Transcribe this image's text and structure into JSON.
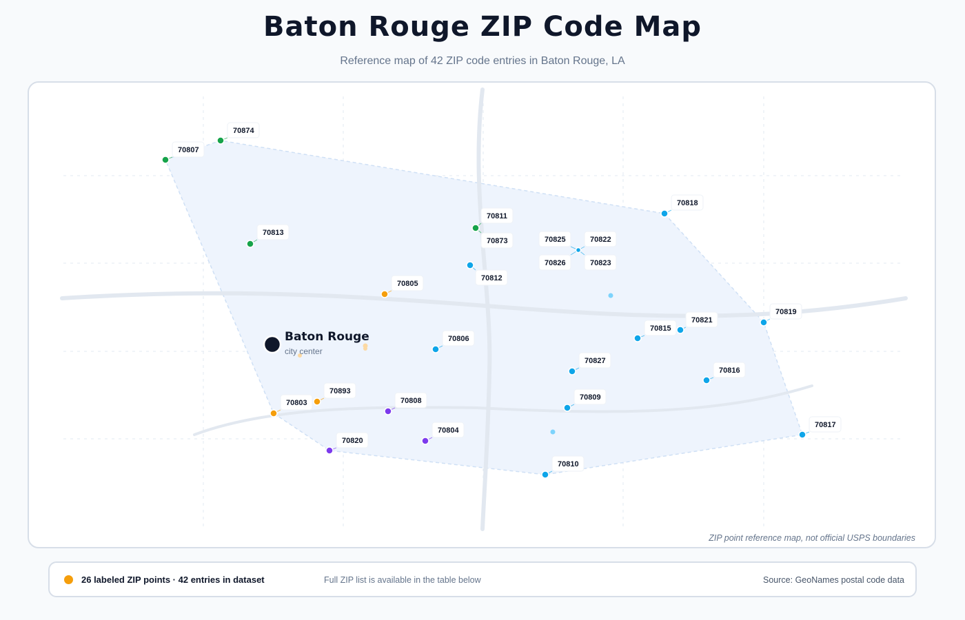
{
  "header": {
    "title": "Baton Rouge ZIP Code Map",
    "subtitle": "Reference map of 42 ZIP code entries in Baton Rouge, LA"
  },
  "map": {
    "disclaimer": "ZIP point reference map, not official USPS boundaries",
    "city": {
      "name": "Baton Rouge",
      "sub": "city center"
    },
    "colors": {
      "green": "#16a34a",
      "blue": "#0ea5e9",
      "orange": "#f59e0b",
      "purple": "#7c3aed",
      "city": "#0f172a",
      "hull_fill": "#eef4fd",
      "road": "#e2e8f0"
    },
    "zip_points": [
      {
        "zip": "70874",
        "group": "green"
      },
      {
        "zip": "70807",
        "group": "green"
      },
      {
        "zip": "70813",
        "group": "green"
      },
      {
        "zip": "70811",
        "group": "green"
      },
      {
        "zip": "70873",
        "group": "green"
      },
      {
        "zip": "70818",
        "group": "blue"
      },
      {
        "zip": "70825",
        "group": "blue"
      },
      {
        "zip": "70822",
        "group": "blue"
      },
      {
        "zip": "70826",
        "group": "blue"
      },
      {
        "zip": "70823",
        "group": "blue"
      },
      {
        "zip": "70812",
        "group": "blue"
      },
      {
        "zip": "70805",
        "group": "orange"
      },
      {
        "zip": "70806",
        "group": "blue"
      },
      {
        "zip": "70815",
        "group": "blue"
      },
      {
        "zip": "70821",
        "group": "blue"
      },
      {
        "zip": "70819",
        "group": "blue"
      },
      {
        "zip": "70827",
        "group": "blue"
      },
      {
        "zip": "70816",
        "group": "blue"
      },
      {
        "zip": "70893",
        "group": "orange"
      },
      {
        "zip": "70803",
        "group": "orange"
      },
      {
        "zip": "70808",
        "group": "purple"
      },
      {
        "zip": "70809",
        "group": "blue"
      },
      {
        "zip": "70804",
        "group": "purple"
      },
      {
        "zip": "70820",
        "group": "purple"
      },
      {
        "zip": "70817",
        "group": "blue"
      },
      {
        "zip": "70810",
        "group": "blue"
      }
    ]
  },
  "footer": {
    "count_text": "26 labeled ZIP points · 42 entries in dataset",
    "note": "Full ZIP list is available in the table below",
    "source": "Source: GeoNames postal code data"
  }
}
